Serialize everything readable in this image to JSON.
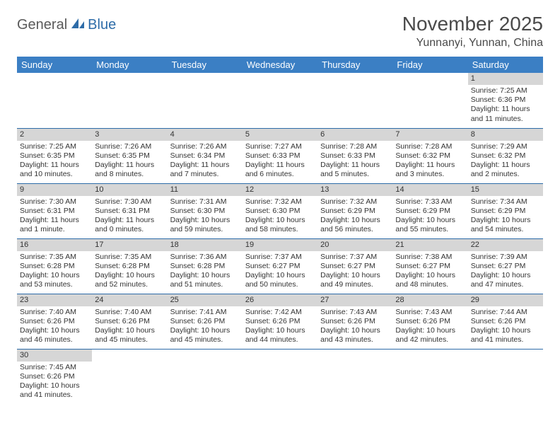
{
  "logo": {
    "text1": "General",
    "text2": "Blue"
  },
  "title": "November 2025",
  "location": "Yunnanyi, Yunnan, China",
  "colors": {
    "header_bg": "#3b7fc4",
    "header_text": "#ffffff",
    "daynum_bg": "#d6d6d6",
    "row_border": "#2e6ca8",
    "title_color": "#4a4a4a",
    "logo_gray": "#5a5a5a",
    "logo_blue": "#2e6ca8"
  },
  "day_headers": [
    "Sunday",
    "Monday",
    "Tuesday",
    "Wednesday",
    "Thursday",
    "Friday",
    "Saturday"
  ],
  "weeks": [
    [
      null,
      null,
      null,
      null,
      null,
      null,
      {
        "n": "1",
        "sunrise": "Sunrise: 7:25 AM",
        "sunset": "Sunset: 6:36 PM",
        "daylight": "Daylight: 11 hours and 11 minutes."
      }
    ],
    [
      {
        "n": "2",
        "sunrise": "Sunrise: 7:25 AM",
        "sunset": "Sunset: 6:35 PM",
        "daylight": "Daylight: 11 hours and 10 minutes."
      },
      {
        "n": "3",
        "sunrise": "Sunrise: 7:26 AM",
        "sunset": "Sunset: 6:35 PM",
        "daylight": "Daylight: 11 hours and 8 minutes."
      },
      {
        "n": "4",
        "sunrise": "Sunrise: 7:26 AM",
        "sunset": "Sunset: 6:34 PM",
        "daylight": "Daylight: 11 hours and 7 minutes."
      },
      {
        "n": "5",
        "sunrise": "Sunrise: 7:27 AM",
        "sunset": "Sunset: 6:33 PM",
        "daylight": "Daylight: 11 hours and 6 minutes."
      },
      {
        "n": "6",
        "sunrise": "Sunrise: 7:28 AM",
        "sunset": "Sunset: 6:33 PM",
        "daylight": "Daylight: 11 hours and 5 minutes."
      },
      {
        "n": "7",
        "sunrise": "Sunrise: 7:28 AM",
        "sunset": "Sunset: 6:32 PM",
        "daylight": "Daylight: 11 hours and 3 minutes."
      },
      {
        "n": "8",
        "sunrise": "Sunrise: 7:29 AM",
        "sunset": "Sunset: 6:32 PM",
        "daylight": "Daylight: 11 hours and 2 minutes."
      }
    ],
    [
      {
        "n": "9",
        "sunrise": "Sunrise: 7:30 AM",
        "sunset": "Sunset: 6:31 PM",
        "daylight": "Daylight: 11 hours and 1 minute."
      },
      {
        "n": "10",
        "sunrise": "Sunrise: 7:30 AM",
        "sunset": "Sunset: 6:31 PM",
        "daylight": "Daylight: 11 hours and 0 minutes."
      },
      {
        "n": "11",
        "sunrise": "Sunrise: 7:31 AM",
        "sunset": "Sunset: 6:30 PM",
        "daylight": "Daylight: 10 hours and 59 minutes."
      },
      {
        "n": "12",
        "sunrise": "Sunrise: 7:32 AM",
        "sunset": "Sunset: 6:30 PM",
        "daylight": "Daylight: 10 hours and 58 minutes."
      },
      {
        "n": "13",
        "sunrise": "Sunrise: 7:32 AM",
        "sunset": "Sunset: 6:29 PM",
        "daylight": "Daylight: 10 hours and 56 minutes."
      },
      {
        "n": "14",
        "sunrise": "Sunrise: 7:33 AM",
        "sunset": "Sunset: 6:29 PM",
        "daylight": "Daylight: 10 hours and 55 minutes."
      },
      {
        "n": "15",
        "sunrise": "Sunrise: 7:34 AM",
        "sunset": "Sunset: 6:29 PM",
        "daylight": "Daylight: 10 hours and 54 minutes."
      }
    ],
    [
      {
        "n": "16",
        "sunrise": "Sunrise: 7:35 AM",
        "sunset": "Sunset: 6:28 PM",
        "daylight": "Daylight: 10 hours and 53 minutes."
      },
      {
        "n": "17",
        "sunrise": "Sunrise: 7:35 AM",
        "sunset": "Sunset: 6:28 PM",
        "daylight": "Daylight: 10 hours and 52 minutes."
      },
      {
        "n": "18",
        "sunrise": "Sunrise: 7:36 AM",
        "sunset": "Sunset: 6:28 PM",
        "daylight": "Daylight: 10 hours and 51 minutes."
      },
      {
        "n": "19",
        "sunrise": "Sunrise: 7:37 AM",
        "sunset": "Sunset: 6:27 PM",
        "daylight": "Daylight: 10 hours and 50 minutes."
      },
      {
        "n": "20",
        "sunrise": "Sunrise: 7:37 AM",
        "sunset": "Sunset: 6:27 PM",
        "daylight": "Daylight: 10 hours and 49 minutes."
      },
      {
        "n": "21",
        "sunrise": "Sunrise: 7:38 AM",
        "sunset": "Sunset: 6:27 PM",
        "daylight": "Daylight: 10 hours and 48 minutes."
      },
      {
        "n": "22",
        "sunrise": "Sunrise: 7:39 AM",
        "sunset": "Sunset: 6:27 PM",
        "daylight": "Daylight: 10 hours and 47 minutes."
      }
    ],
    [
      {
        "n": "23",
        "sunrise": "Sunrise: 7:40 AM",
        "sunset": "Sunset: 6:26 PM",
        "daylight": "Daylight: 10 hours and 46 minutes."
      },
      {
        "n": "24",
        "sunrise": "Sunrise: 7:40 AM",
        "sunset": "Sunset: 6:26 PM",
        "daylight": "Daylight: 10 hours and 45 minutes."
      },
      {
        "n": "25",
        "sunrise": "Sunrise: 7:41 AM",
        "sunset": "Sunset: 6:26 PM",
        "daylight": "Daylight: 10 hours and 45 minutes."
      },
      {
        "n": "26",
        "sunrise": "Sunrise: 7:42 AM",
        "sunset": "Sunset: 6:26 PM",
        "daylight": "Daylight: 10 hours and 44 minutes."
      },
      {
        "n": "27",
        "sunrise": "Sunrise: 7:43 AM",
        "sunset": "Sunset: 6:26 PM",
        "daylight": "Daylight: 10 hours and 43 minutes."
      },
      {
        "n": "28",
        "sunrise": "Sunrise: 7:43 AM",
        "sunset": "Sunset: 6:26 PM",
        "daylight": "Daylight: 10 hours and 42 minutes."
      },
      {
        "n": "29",
        "sunrise": "Sunrise: 7:44 AM",
        "sunset": "Sunset: 6:26 PM",
        "daylight": "Daylight: 10 hours and 41 minutes."
      }
    ],
    [
      {
        "n": "30",
        "sunrise": "Sunrise: 7:45 AM",
        "sunset": "Sunset: 6:26 PM",
        "daylight": "Daylight: 10 hours and 41 minutes."
      },
      null,
      null,
      null,
      null,
      null,
      null
    ]
  ]
}
